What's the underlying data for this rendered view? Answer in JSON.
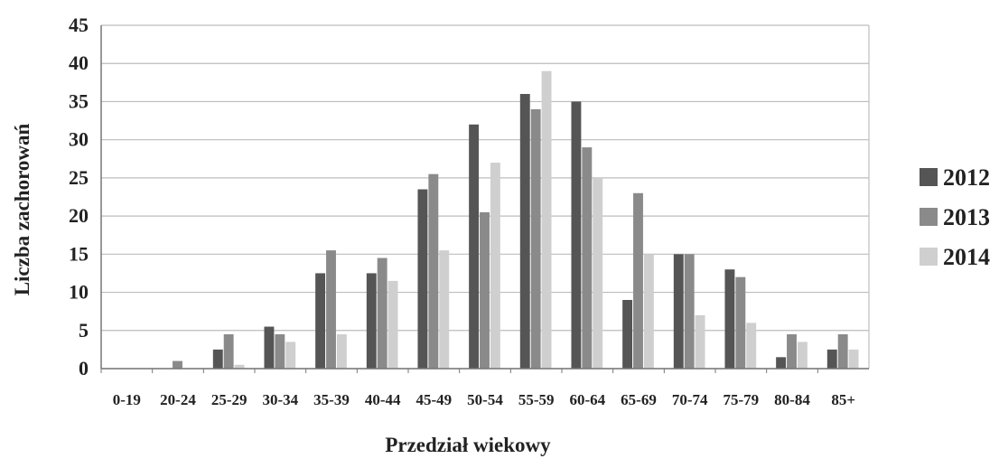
{
  "chart_data": {
    "type": "bar",
    "title": "",
    "xlabel": "Przedział wiekowy",
    "ylabel": "Liczba zachorowań",
    "ylim": [
      0,
      45
    ],
    "yticks": [
      0,
      5,
      10,
      15,
      20,
      25,
      30,
      35,
      40,
      45
    ],
    "grid": true,
    "legend": "right",
    "categories": [
      "0-19",
      "20-24",
      "25-29",
      "30-34",
      "35-39",
      "40-44",
      "45-49",
      "50-54",
      "55-59",
      "60-64",
      "65-69",
      "70-74",
      "75-79",
      "80-84",
      "85+"
    ],
    "series": [
      {
        "name": "2012",
        "color": "#555555",
        "values": [
          0,
          0,
          2.5,
          5.5,
          12.5,
          12.5,
          23.5,
          32,
          36,
          35,
          9,
          15,
          13,
          1.5,
          2.5
        ]
      },
      {
        "name": "2013",
        "color": "#8a8a8a",
        "values": [
          0,
          1,
          4.5,
          4.5,
          15.5,
          14.5,
          25.5,
          20.5,
          34,
          29,
          23,
          15,
          12,
          4.5,
          4.5
        ]
      },
      {
        "name": "2014",
        "color": "#cfcfcf",
        "values": [
          0,
          0,
          0.5,
          3.5,
          4.5,
          11.5,
          15.5,
          27,
          39,
          25,
          15,
          7,
          6,
          3.5,
          2.5
        ]
      }
    ]
  }
}
